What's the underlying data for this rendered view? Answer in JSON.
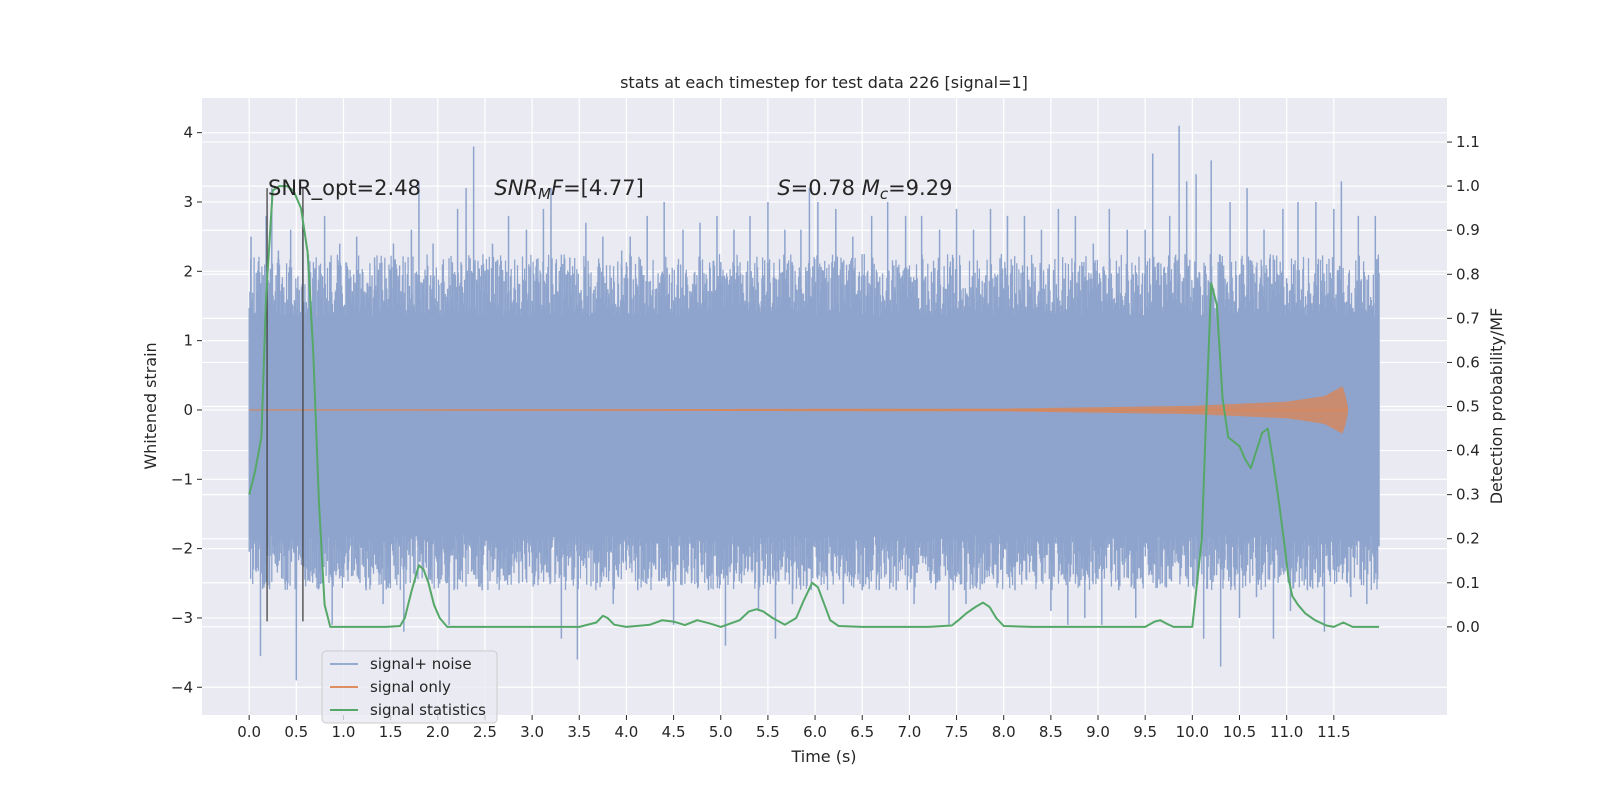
{
  "chart_data": {
    "type": "line",
    "title": "stats at each timestep for test data 226 [signal=1]",
    "xlabel": "Time (s)",
    "ylabel": "Whitened strain",
    "y2label": "Detection probability/MF",
    "xlim": [
      -0.5,
      12.7
    ],
    "ylim": [
      -4.4,
      4.5
    ],
    "y2lim": [
      -0.2,
      1.2
    ],
    "xticks": [
      0.0,
      0.5,
      1.0,
      1.5,
      2.0,
      2.5,
      3.0,
      3.5,
      4.0,
      4.5,
      5.0,
      5.5,
      6.0,
      6.5,
      7.0,
      7.5,
      8.0,
      8.5,
      9.0,
      9.5,
      10.0,
      10.5,
      11.0,
      11.5
    ],
    "xtick_labels": [
      "0.0",
      "0.5",
      "1.0",
      "1.5",
      "2.0",
      "2.5",
      "3.0",
      "3.5",
      "4.0",
      "4.5",
      "5.0",
      "5.5",
      "6.0",
      "6.5",
      "7.0",
      "7.5",
      "8.0",
      "8.5",
      "9.0",
      "9.5",
      "10.0",
      "10.5",
      "11.0",
      "11.5"
    ],
    "yticks": [
      -4,
      -3,
      -2,
      -1,
      0,
      1,
      2,
      3,
      4
    ],
    "ytick_labels": [
      "−4",
      "−3",
      "−2",
      "−1",
      "0",
      "1",
      "2",
      "3",
      "4"
    ],
    "y2ticks": [
      0.0,
      0.1,
      0.2,
      0.3,
      0.4,
      0.5,
      0.6,
      0.7,
      0.8,
      0.9,
      1.0,
      1.1
    ],
    "y2tick_labels": [
      "0.0",
      "0.1",
      "0.2",
      "0.3",
      "0.4",
      "0.5",
      "0.6",
      "0.7",
      "0.8",
      "0.9",
      "1.0",
      "1.1"
    ],
    "grid": true,
    "legend_position": "lower-left",
    "annotations": [
      {
        "key": "snr_opt",
        "parts": [
          {
            "t": "SNR_opt=2.48",
            "style": "normal"
          }
        ],
        "x": 0.2,
        "y": 3.1
      },
      {
        "key": "snr_mf",
        "parts": [
          {
            "t": "SNR",
            "style": "italic"
          },
          {
            "t": "M",
            "style": "italic-sub"
          },
          {
            "t": "F=[4.77]",
            "style": "italic-then-normal"
          }
        ],
        "x": 2.6,
        "y": 3.1
      },
      {
        "key": "s_mc",
        "parts": [
          {
            "t": "S",
            "style": "italic"
          },
          {
            "t": "=0.78   ",
            "style": "normal"
          },
          {
            "t": "M",
            "style": "italic"
          },
          {
            "t": "c",
            "style": "italic-sub"
          },
          {
            "t": "=9.29",
            "style": "normal"
          }
        ],
        "x": 5.6,
        "y": 3.1
      }
    ],
    "series": [
      {
        "name": "signal+ noise",
        "color": "#8ea4cc",
        "kind": "noise-band",
        "x_range": [
          0.0,
          11.98
        ],
        "dense_envelope": [
          -1.8,
          1.35
        ],
        "spikes": [
          [
            0.02,
            2.5
          ],
          [
            0.07,
            -2.1
          ],
          [
            0.12,
            -3.55
          ],
          [
            0.18,
            2.8
          ],
          [
            0.24,
            3.2
          ],
          [
            0.31,
            2.3
          ],
          [
            0.38,
            -2.5
          ],
          [
            0.44,
            2.6
          ],
          [
            0.5,
            -3.9
          ],
          [
            0.57,
            2.9
          ],
          [
            0.63,
            2.1
          ],
          [
            0.71,
            -2.4
          ],
          [
            0.8,
            2.8
          ],
          [
            0.88,
            -3.1
          ],
          [
            0.96,
            2.4
          ],
          [
            1.05,
            -2.3
          ],
          [
            1.14,
            2.5
          ],
          [
            1.24,
            -2.6
          ],
          [
            1.33,
            2.2
          ],
          [
            1.42,
            -2.8
          ],
          [
            1.53,
            2.4
          ],
          [
            1.64,
            -3.2
          ],
          [
            1.72,
            2.6
          ],
          [
            1.8,
            3.3
          ],
          [
            1.87,
            -2.2
          ],
          [
            1.95,
            2.4
          ],
          [
            2.05,
            2.1
          ],
          [
            2.12,
            -3.1
          ],
          [
            2.21,
            2.9
          ],
          [
            2.3,
            3.2
          ],
          [
            2.38,
            3.8
          ],
          [
            2.47,
            -2.6
          ],
          [
            2.58,
            2.4
          ],
          [
            2.66,
            -2.3
          ],
          [
            2.75,
            2.8
          ],
          [
            2.86,
            -2.5
          ],
          [
            2.94,
            2.6
          ],
          [
            3.03,
            -2.4
          ],
          [
            3.12,
            2.9
          ],
          [
            3.2,
            3.2
          ],
          [
            3.31,
            -3.3
          ],
          [
            3.4,
            2.2
          ],
          [
            3.48,
            -3.6
          ],
          [
            3.57,
            2.7
          ],
          [
            3.66,
            -2.2
          ],
          [
            3.75,
            2.5
          ],
          [
            3.86,
            -2.8
          ],
          [
            3.95,
            2.3
          ],
          [
            4.04,
            2.5
          ],
          [
            4.12,
            -2.6
          ],
          [
            4.22,
            2.8
          ],
          [
            4.31,
            -2.3
          ],
          [
            4.4,
            3.0
          ],
          [
            4.5,
            -3.1
          ],
          [
            4.6,
            2.6
          ],
          [
            4.69,
            -2.5
          ],
          [
            4.78,
            2.7
          ],
          [
            4.87,
            -2.6
          ],
          [
            4.96,
            2.8
          ],
          [
            5.05,
            -3.4
          ],
          [
            5.14,
            2.6
          ],
          [
            5.22,
            -2.5
          ],
          [
            5.31,
            2.8
          ],
          [
            5.4,
            -2.9
          ],
          [
            5.5,
            3.0
          ],
          [
            5.58,
            -3.3
          ],
          [
            5.68,
            2.6
          ],
          [
            5.76,
            -2.8
          ],
          [
            5.85,
            2.6
          ],
          [
            5.94,
            3.2
          ],
          [
            6.03,
            3.0
          ],
          [
            6.12,
            -2.4
          ],
          [
            6.22,
            2.9
          ],
          [
            6.3,
            -2.8
          ],
          [
            6.4,
            2.5
          ],
          [
            6.5,
            -2.6
          ],
          [
            6.6,
            2.8
          ],
          [
            6.68,
            -2.6
          ],
          [
            6.77,
            3.0
          ],
          [
            6.86,
            -2.6
          ],
          [
            6.96,
            2.8
          ],
          [
            7.05,
            -2.8
          ],
          [
            7.13,
            2.8
          ],
          [
            7.23,
            -2.5
          ],
          [
            7.32,
            2.6
          ],
          [
            7.42,
            -3.1
          ],
          [
            7.5,
            2.9
          ],
          [
            7.6,
            -2.8
          ],
          [
            7.68,
            2.6
          ],
          [
            7.77,
            -2.5
          ],
          [
            7.86,
            2.9
          ],
          [
            7.94,
            -2.5
          ],
          [
            8.04,
            2.8
          ],
          [
            8.12,
            -2.6
          ],
          [
            8.22,
            2.8
          ],
          [
            8.31,
            -2.3
          ],
          [
            8.4,
            2.6
          ],
          [
            8.5,
            -2.9
          ],
          [
            8.58,
            2.9
          ],
          [
            8.68,
            -3.1
          ],
          [
            8.76,
            2.8
          ],
          [
            8.86,
            -3.0
          ],
          [
            8.95,
            2.4
          ],
          [
            9.04,
            -3.1
          ],
          [
            9.12,
            2.9
          ],
          [
            9.22,
            -2.6
          ],
          [
            9.31,
            2.6
          ],
          [
            9.4,
            -3.0
          ],
          [
            9.5,
            2.6
          ],
          [
            9.58,
            3.7
          ],
          [
            9.68,
            -2.5
          ],
          [
            9.76,
            2.8
          ],
          [
            9.86,
            4.1
          ],
          [
            9.94,
            3.3
          ],
          [
            10.04,
            3.4
          ],
          [
            10.12,
            -3.3
          ],
          [
            10.2,
            3.6
          ],
          [
            10.3,
            -3.7
          ],
          [
            10.4,
            3.0
          ],
          [
            10.5,
            -3.0
          ],
          [
            10.58,
            3.2
          ],
          [
            10.68,
            -2.7
          ],
          [
            10.76,
            2.6
          ],
          [
            10.86,
            -3.3
          ],
          [
            10.96,
            2.9
          ],
          [
            11.04,
            -2.9
          ],
          [
            11.12,
            3.0
          ],
          [
            11.22,
            -2.6
          ],
          [
            11.31,
            3.0
          ],
          [
            11.4,
            -3.2
          ],
          [
            11.5,
            2.9
          ],
          [
            11.58,
            3.3
          ],
          [
            11.68,
            -2.7
          ],
          [
            11.76,
            2.8
          ],
          [
            11.85,
            -2.8
          ],
          [
            11.94,
            2.8
          ]
        ]
      },
      {
        "name": "signal only",
        "color": "#dd8452",
        "kind": "chirp",
        "x_range": [
          0.0,
          11.65
        ],
        "amplitude": [
          [
            0.0,
            0.005
          ],
          [
            8.0,
            0.02
          ],
          [
            10.0,
            0.06
          ],
          [
            11.0,
            0.12
          ],
          [
            11.4,
            0.2
          ],
          [
            11.6,
            0.35
          ],
          [
            11.65,
            0.05
          ]
        ]
      },
      {
        "name": "signal statistics",
        "color": "#55a868",
        "axis": "right",
        "x": [
          0.0,
          0.06,
          0.13,
          0.18,
          0.25,
          0.32,
          0.4,
          0.47,
          0.55,
          0.62,
          0.68,
          0.74,
          0.8,
          0.86,
          0.95,
          1.2,
          1.45,
          1.6,
          1.65,
          1.72,
          1.8,
          1.85,
          1.9,
          1.96,
          2.02,
          2.1,
          2.3,
          2.6,
          3.0,
          3.5,
          3.68,
          3.75,
          3.8,
          3.87,
          4.0,
          4.25,
          4.38,
          4.5,
          4.62,
          4.75,
          4.88,
          5.0,
          5.2,
          5.3,
          5.38,
          5.45,
          5.55,
          5.68,
          5.8,
          5.88,
          5.97,
          6.03,
          6.1,
          6.16,
          6.25,
          6.5,
          7.0,
          7.2,
          7.45,
          7.52,
          7.6,
          7.7,
          7.78,
          7.85,
          7.92,
          8.0,
          8.3,
          9.0,
          9.5,
          9.6,
          9.66,
          9.72,
          9.8,
          10.0,
          10.1,
          10.15,
          10.2,
          10.26,
          10.32,
          10.38,
          10.5,
          10.56,
          10.62,
          10.68,
          10.74,
          10.8,
          10.86,
          10.92,
          10.98,
          11.02,
          11.06,
          11.12,
          11.2,
          11.3,
          11.42,
          11.5,
          11.6,
          11.7,
          11.8,
          11.9,
          11.98
        ],
        "values": [
          0.3,
          0.35,
          0.43,
          0.75,
          0.99,
          1.0,
          1.0,
          0.99,
          0.95,
          0.85,
          0.62,
          0.28,
          0.05,
          0.0,
          0.0,
          0.0,
          0.0,
          0.002,
          0.02,
          0.08,
          0.14,
          0.13,
          0.1,
          0.05,
          0.02,
          0.0,
          0.0,
          0.0,
          0.0,
          0.0,
          0.01,
          0.025,
          0.02,
          0.005,
          0.0,
          0.005,
          0.015,
          0.012,
          0.004,
          0.015,
          0.008,
          0.0,
          0.015,
          0.035,
          0.04,
          0.035,
          0.02,
          0.005,
          0.02,
          0.06,
          0.1,
          0.09,
          0.05,
          0.015,
          0.002,
          0.0,
          0.0,
          0.0,
          0.003,
          0.015,
          0.03,
          0.045,
          0.055,
          0.045,
          0.02,
          0.002,
          0.0,
          0.0,
          0.0,
          0.012,
          0.015,
          0.008,
          0.0,
          0.0,
          0.2,
          0.5,
          0.78,
          0.73,
          0.52,
          0.43,
          0.41,
          0.38,
          0.36,
          0.4,
          0.44,
          0.45,
          0.37,
          0.28,
          0.18,
          0.11,
          0.07,
          0.05,
          0.03,
          0.015,
          0.003,
          0.0,
          0.01,
          0.0,
          0.0,
          0.0,
          0.0
        ]
      }
    ],
    "vlines": [
      {
        "x": 0.19,
        "color": "#444444"
      },
      {
        "x": 0.57,
        "color": "#444444"
      }
    ]
  }
}
